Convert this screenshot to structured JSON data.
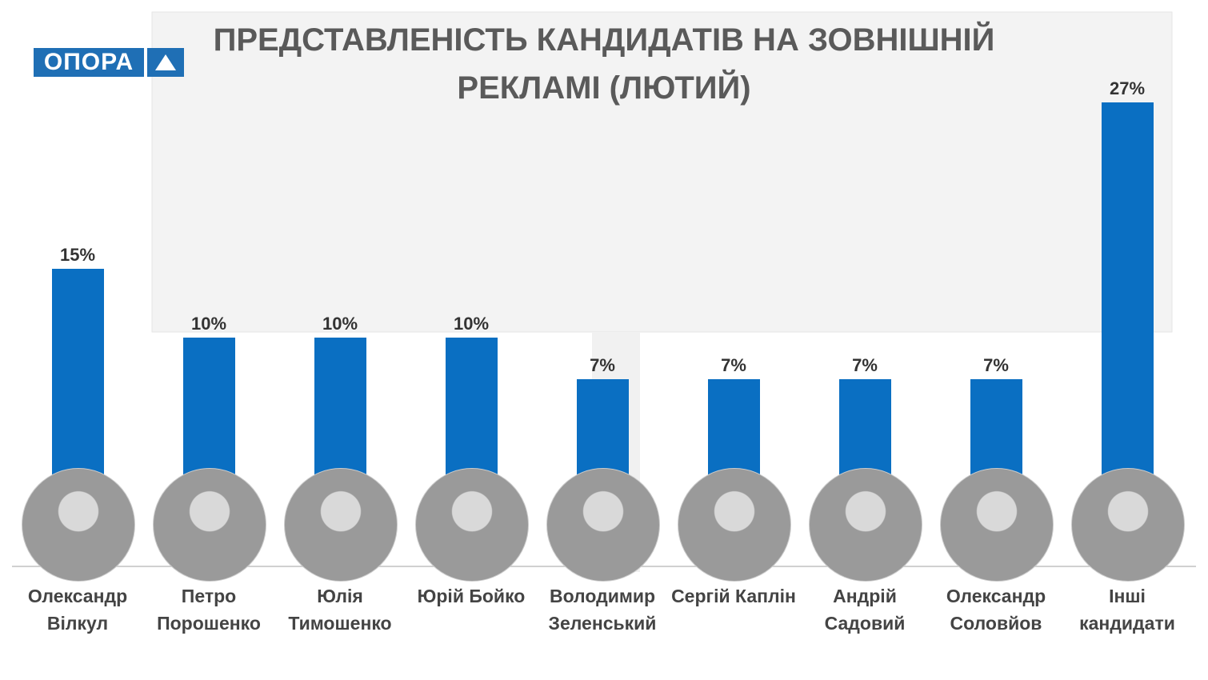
{
  "logo": "ОПОРА",
  "chart_data": {
    "type": "bar",
    "title": "ПРЕДСТАВЛЕНІСТЬ КАНДИДАТІВ НА ЗОВНІШНІЙ РЕКЛАМІ (ЛЮТИЙ)",
    "categories": [
      "Олександр Вілкул",
      "Петро Порошенко",
      "Юлія Тимошенко",
      "Юрій Бойко",
      "Володимир Зеленський",
      "Сергій Каплін",
      "Андрій Садовий",
      "Олександр Соловйов",
      "Інші кандидати"
    ],
    "values": [
      15,
      10,
      10,
      10,
      7,
      7,
      7,
      7,
      27
    ],
    "value_labels": [
      "15%",
      "10%",
      "10%",
      "10%",
      "7%",
      "7%",
      "7%",
      "7%",
      "27%"
    ],
    "color": "#0a6fc2"
  }
}
